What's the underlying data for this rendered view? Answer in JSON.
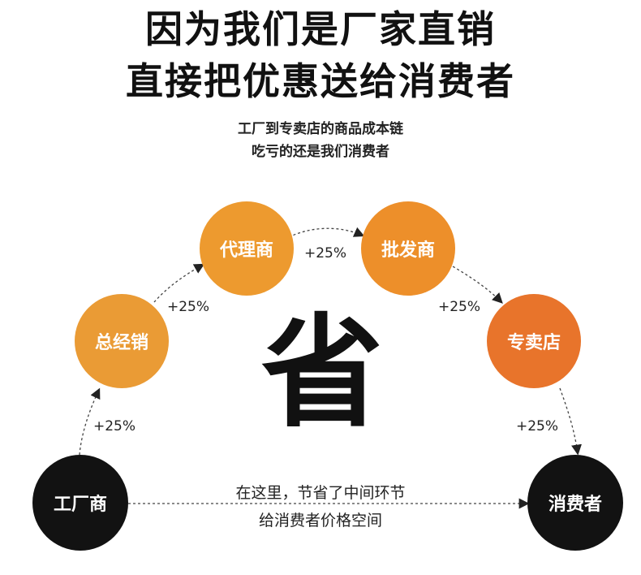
{
  "headline": {
    "line1": "因为我们是厂家直销",
    "line2": "直接把优惠送给消费者"
  },
  "subtitle": {
    "line1": "工厂到专卖店的商品成本链",
    "line2": "吃亏的还是我们消费者"
  },
  "nodes": [
    {
      "id": "factory",
      "label": "工厂商",
      "color": "#121212"
    },
    {
      "id": "distributor",
      "label": "总经销",
      "color": "#ea9b35"
    },
    {
      "id": "agent",
      "label": "代理商",
      "color": "#ed9a2f"
    },
    {
      "id": "wholesaler",
      "label": "批发商",
      "color": "#ed8f2a"
    },
    {
      "id": "store",
      "label": "专卖店",
      "color": "#e8742b"
    },
    {
      "id": "consumer",
      "label": "消费者",
      "color": "#121212"
    }
  ],
  "markups": [
    "+25%",
    "+25%",
    "+25%",
    "+25%",
    "+25%"
  ],
  "center_char": "省",
  "bottom_note": {
    "line1": "在这里，节省了中间环节",
    "line2": "给消费者价格空间"
  }
}
